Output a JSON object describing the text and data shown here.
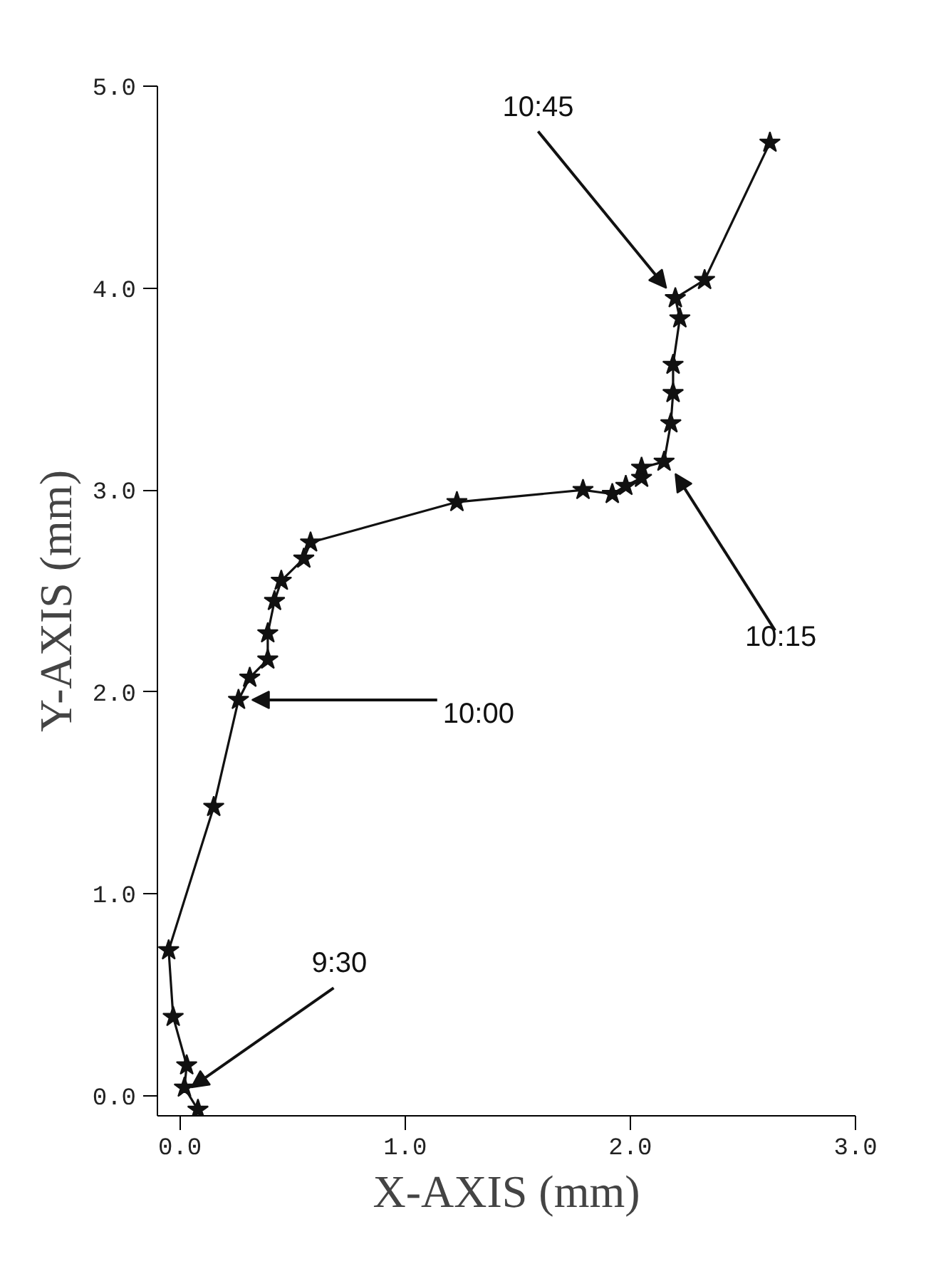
{
  "chart_data": {
    "type": "line",
    "xlabel": "X-AXIS (mm)",
    "ylabel": "Y-AXIS (mm)",
    "x": [
      0.08,
      0.02,
      0.03,
      -0.03,
      -0.05,
      0.15,
      0.26,
      0.31,
      0.39,
      0.39,
      0.42,
      0.45,
      0.55,
      0.58,
      1.23,
      1.79,
      1.92,
      1.98,
      2.05,
      2.05,
      2.15,
      2.18,
      2.19,
      2.19,
      2.22,
      2.2,
      2.33,
      2.62
    ],
    "series": [
      {
        "color": "#111111",
        "values": [
          -0.07,
          0.04,
          0.15,
          0.39,
          0.72,
          1.43,
          1.96,
          2.07,
          2.16,
          2.29,
          2.45,
          2.55,
          2.66,
          2.74,
          2.94,
          3.0,
          2.98,
          3.02,
          3.06,
          3.11,
          3.14,
          3.33,
          3.48,
          3.62,
          3.85,
          3.95,
          4.04,
          4.72
        ]
      }
    ],
    "marker": "star",
    "line_style": "solid",
    "xlim": [
      -0.1,
      3.0
    ],
    "ylim": [
      -0.1,
      5.0
    ],
    "xticks": [
      {
        "value": 0,
        "label": "0.0"
      },
      {
        "value": 1,
        "label": "1.0"
      },
      {
        "value": 2,
        "label": "2.0"
      },
      {
        "value": 3,
        "label": "3.0"
      }
    ],
    "yticks": [
      {
        "value": 0,
        "label": "0.0"
      },
      {
        "value": 1,
        "label": "1.0"
      },
      {
        "value": 2,
        "label": "2.0"
      },
      {
        "value": 3,
        "label": "3.0"
      },
      {
        "value": 4,
        "label": "4.0"
      },
      {
        "value": 5,
        "label": "5.0"
      }
    ],
    "annotations": [
      {
        "text": "9:30",
        "x": 0.05,
        "y": 0.04
      },
      {
        "text": "10:00",
        "x": 0.32,
        "y": 1.96
      },
      {
        "text": "10:15",
        "x": 2.2,
        "y": 3.08
      },
      {
        "text": "10:45",
        "x": 2.16,
        "y": 4.0
      }
    ]
  }
}
